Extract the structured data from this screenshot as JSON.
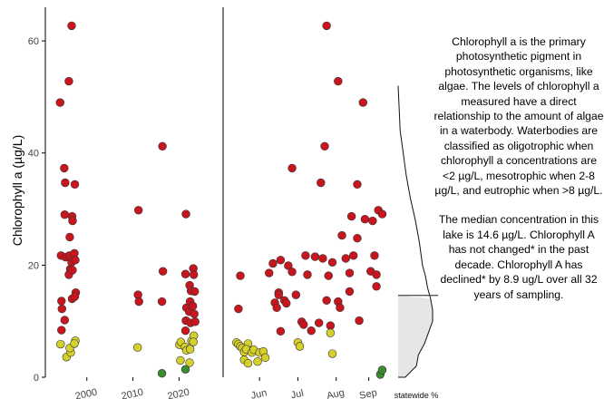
{
  "chart_data": [
    {
      "type": "scatter",
      "panel": "by year",
      "ylabel": "Chlorophyll a (µg/L)",
      "xlabel": "",
      "ylim": [
        0,
        66
      ],
      "xlim": [
        1991,
        2027
      ],
      "xticks": [
        "2000",
        "2010",
        "2020"
      ],
      "yticks": [
        "0",
        "20",
        "40",
        "60"
      ],
      "grid": false,
      "categories_colors": {
        "eutrophic": "#c9151e",
        "mesotrophic": "#d6d12a",
        "oligotrophic": "#3a8c2e"
      },
      "points": [
        [
          1994.2,
          49
        ],
        [
          1994.4,
          21.7
        ],
        [
          1994.5,
          13.6
        ],
        [
          1994.6,
          12.2
        ],
        [
          1994.5,
          8.4
        ],
        [
          1994.3,
          5.9
        ],
        [
          1995.1,
          37.3
        ],
        [
          1995.3,
          34.7
        ],
        [
          1995.2,
          29
        ],
        [
          1995.4,
          21.4
        ],
        [
          1995.2,
          10.2
        ],
        [
          1995.6,
          3.6
        ],
        [
          1996.1,
          52.8
        ],
        [
          1996.3,
          25
        ],
        [
          1996.2,
          21.7
        ],
        [
          1996.4,
          19.3
        ],
        [
          1996.1,
          18.3
        ],
        [
          1996.5,
          4.4
        ],
        [
          1996.3,
          5.2
        ],
        [
          1996.7,
          62.7
        ],
        [
          1996.8,
          28.7
        ],
        [
          1996.9,
          27.9
        ],
        [
          1996.7,
          20.5
        ],
        [
          1996.9,
          19.1
        ],
        [
          1996.8,
          14
        ],
        [
          1997.4,
          34.4
        ],
        [
          1997.3,
          22.1
        ],
        [
          1997.5,
          20.9
        ],
        [
          1997.6,
          15.1
        ],
        [
          1997.4,
          14.4
        ],
        [
          1997.5,
          6.5
        ],
        [
          1997.3,
          6
        ],
        [
          2011.2,
          29.8
        ],
        [
          2011.1,
          14.7
        ],
        [
          2011.3,
          13.5
        ],
        [
          2011.0,
          5.3
        ],
        [
          2016.4,
          41.2
        ],
        [
          2016.5,
          18.9
        ],
        [
          2016.3,
          13.5
        ],
        [
          2016.3,
          0.7
        ],
        [
          2020.1,
          5.8
        ],
        [
          2020.3,
          3
        ],
        [
          2020.4,
          6.3
        ],
        [
          2021.5,
          29.1
        ],
        [
          2021.4,
          18.4
        ],
        [
          2021.6,
          12.4
        ],
        [
          2021.5,
          10.1
        ],
        [
          2021.4,
          8.3
        ],
        [
          2021.3,
          5.4
        ],
        [
          2021.6,
          4.8
        ],
        [
          2021.4,
          1.4
        ],
        [
          2022.3,
          16.4
        ],
        [
          2022.6,
          15.4
        ],
        [
          2022.4,
          13.5
        ],
        [
          2022.2,
          11.7
        ],
        [
          2022.5,
          9.7
        ],
        [
          2022.7,
          6.5
        ],
        [
          2022.4,
          5
        ],
        [
          2022.3,
          2.6
        ],
        [
          2023.1,
          19.4
        ],
        [
          2023.2,
          18.3
        ],
        [
          2023.4,
          15.3
        ],
        [
          2023.0,
          12.7
        ],
        [
          2023.3,
          11.3
        ],
        [
          2023.5,
          9.9
        ],
        [
          2023.2,
          7.4
        ],
        [
          2023.1,
          6.3
        ]
      ]
    },
    {
      "type": "scatter",
      "panel": "by month",
      "xlabel": "",
      "ylim": [
        0,
        66
      ],
      "xticks": [
        "Jun",
        "Jul",
        "Aug",
        "Sep"
      ],
      "points_month": [
        [
          5.0,
          18.1
        ],
        [
          4.95,
          12.2
        ],
        [
          4.9,
          6.2
        ],
        [
          4.95,
          5.9
        ],
        [
          5.0,
          5.5
        ],
        [
          5.05,
          5.2
        ],
        [
          5.1,
          4.5
        ],
        [
          5.2,
          6
        ],
        [
          5.15,
          5
        ],
        [
          5.3,
          4.4
        ],
        [
          5.35,
          4.9
        ],
        [
          5.5,
          4.4
        ],
        [
          5.1,
          3.1
        ],
        [
          5.2,
          2.5
        ],
        [
          5.45,
          2.8
        ],
        [
          5.6,
          4.6
        ],
        [
          5.65,
          3.5
        ],
        [
          5.75,
          18.6
        ],
        [
          5.85,
          20.3
        ],
        [
          5.9,
          13.3
        ],
        [
          5.95,
          12.4
        ],
        [
          6.0,
          15.1
        ],
        [
          6.0,
          14.7
        ],
        [
          6.05,
          20.9
        ],
        [
          6.05,
          8.2
        ],
        [
          6.15,
          13.7
        ],
        [
          6.2,
          13.2
        ],
        [
          6.25,
          19.9
        ],
        [
          6.35,
          37.3
        ],
        [
          6.35,
          18.8
        ],
        [
          6.45,
          14.7
        ],
        [
          6.5,
          6.2
        ],
        [
          6.55,
          5.5
        ],
        [
          6.6,
          9.9
        ],
        [
          6.65,
          9.4
        ],
        [
          6.7,
          21.7
        ],
        [
          6.75,
          18.3
        ],
        [
          6.85,
          8.3
        ],
        [
          6.95,
          21.5
        ],
        [
          7.05,
          9.7
        ],
        [
          7.1,
          34.7
        ],
        [
          7.15,
          21.2
        ],
        [
          7.25,
          62.7
        ],
        [
          7.2,
          41.2
        ],
        [
          7.25,
          13.7
        ],
        [
          7.3,
          18.1
        ],
        [
          7.35,
          9.2
        ],
        [
          7.35,
          7.9
        ],
        [
          7.4,
          20.5
        ],
        [
          7.4,
          4.2
        ],
        [
          7.55,
          52.8
        ],
        [
          7.55,
          13.5
        ],
        [
          7.6,
          12.4
        ],
        [
          7.65,
          25.3
        ],
        [
          7.75,
          21.2
        ],
        [
          7.85,
          18.6
        ],
        [
          7.85,
          15.3
        ],
        [
          7.9,
          28.7
        ],
        [
          7.95,
          21.7
        ],
        [
          8.05,
          34.4
        ],
        [
          8.05,
          24.8
        ],
        [
          8.1,
          10.1
        ],
        [
          8.2,
          49
        ],
        [
          8.25,
          28.2
        ],
        [
          8.4,
          18.9
        ],
        [
          8.45,
          27.9
        ],
        [
          8.5,
          21.7
        ],
        [
          8.55,
          18.3
        ],
        [
          8.55,
          16.2
        ],
        [
          8.6,
          29.8
        ],
        [
          8.7,
          29.1
        ],
        [
          8.65,
          0.5
        ],
        [
          8.7,
          1.3
        ]
      ],
      "eutrophic_month": [
        [
          5.0,
          18.1
        ],
        [
          4.95,
          12.2
        ],
        [
          5.75,
          18.6
        ],
        [
          5.85,
          20.3
        ],
        [
          5.9,
          13.3
        ],
        [
          5.95,
          12.4
        ],
        [
          6.0,
          15.1
        ],
        [
          6.0,
          14.7
        ],
        [
          6.05,
          20.9
        ],
        [
          6.05,
          8.2
        ],
        [
          6.15,
          13.7
        ],
        [
          6.2,
          13.2
        ],
        [
          6.25,
          19.9
        ],
        [
          6.35,
          37.3
        ],
        [
          6.35,
          18.8
        ],
        [
          6.45,
          14.7
        ],
        [
          6.6,
          9.9
        ],
        [
          6.65,
          9.4
        ],
        [
          6.7,
          21.7
        ],
        [
          6.75,
          18.3
        ],
        [
          6.85,
          8.3
        ],
        [
          6.95,
          21.5
        ],
        [
          7.05,
          9.7
        ],
        [
          7.1,
          34.7
        ],
        [
          7.15,
          21.2
        ],
        [
          7.25,
          62.7
        ],
        [
          7.2,
          41.2
        ],
        [
          7.25,
          13.7
        ],
        [
          7.3,
          18.1
        ],
        [
          7.35,
          9.2
        ],
        [
          7.35,
          7.9
        ],
        [
          7.4,
          20.5
        ],
        [
          7.55,
          52.8
        ],
        [
          7.55,
          13.5
        ],
        [
          7.6,
          12.4
        ],
        [
          7.65,
          25.3
        ],
        [
          7.75,
          21.2
        ],
        [
          7.85,
          18.6
        ],
        [
          7.85,
          15.3
        ],
        [
          7.9,
          28.7
        ],
        [
          7.95,
          21.7
        ],
        [
          8.05,
          34.4
        ],
        [
          8.05,
          24.8
        ],
        [
          8.1,
          10.1
        ],
        [
          8.2,
          49
        ],
        [
          8.25,
          28.2
        ],
        [
          8.4,
          18.9
        ],
        [
          8.45,
          27.9
        ],
        [
          8.5,
          21.7
        ],
        [
          8.55,
          18.3
        ],
        [
          8.55,
          16.2
        ],
        [
          8.6,
          29.8
        ],
        [
          8.7,
          29.1
        ]
      ],
      "oligotrophic_month": [
        [
          8.65,
          0.5
        ],
        [
          8.7,
          1.3
        ]
      ]
    },
    {
      "type": "area",
      "panel": "statewide distribution",
      "xlabel": "statewide %",
      "median_line": 14.6,
      "density": [
        [
          0,
          0.07
        ],
        [
          2,
          0.18
        ],
        [
          4,
          0.2
        ],
        [
          6,
          0.26
        ],
        [
          8,
          0.3
        ],
        [
          10,
          0.34
        ],
        [
          12,
          0.34
        ],
        [
          14,
          0.32
        ],
        [
          16,
          0.29
        ],
        [
          18,
          0.27
        ],
        [
          20,
          0.24
        ],
        [
          24,
          0.21
        ],
        [
          28,
          0.17
        ],
        [
          32,
          0.12
        ],
        [
          36,
          0.08
        ],
        [
          40,
          0.05
        ],
        [
          44,
          0.02
        ],
        [
          48,
          0.01
        ],
        [
          52,
          0.0
        ]
      ]
    }
  ],
  "info": {
    "paragraph1": "Chlorophyll a is the primary photosynthetic pigment in photosynthetic organisms, like algae. The levels of chlorophyll a measured have a direct relationship to the amount of algae in a waterbody. Waterbodies are classified as oligotrophic when chlorophyll a concentrations are <2 µg/L, mesotrophic when 2-8 µg/L, and eutrophic when >8 µg/L.",
    "paragraph2": "The median concentration in this lake is 14.6 µg/L. Chlorophyll A has not changed* in the past decade. Chlorophyll A has declined* by 8.9 ug/L over all 32 years of sampling."
  }
}
